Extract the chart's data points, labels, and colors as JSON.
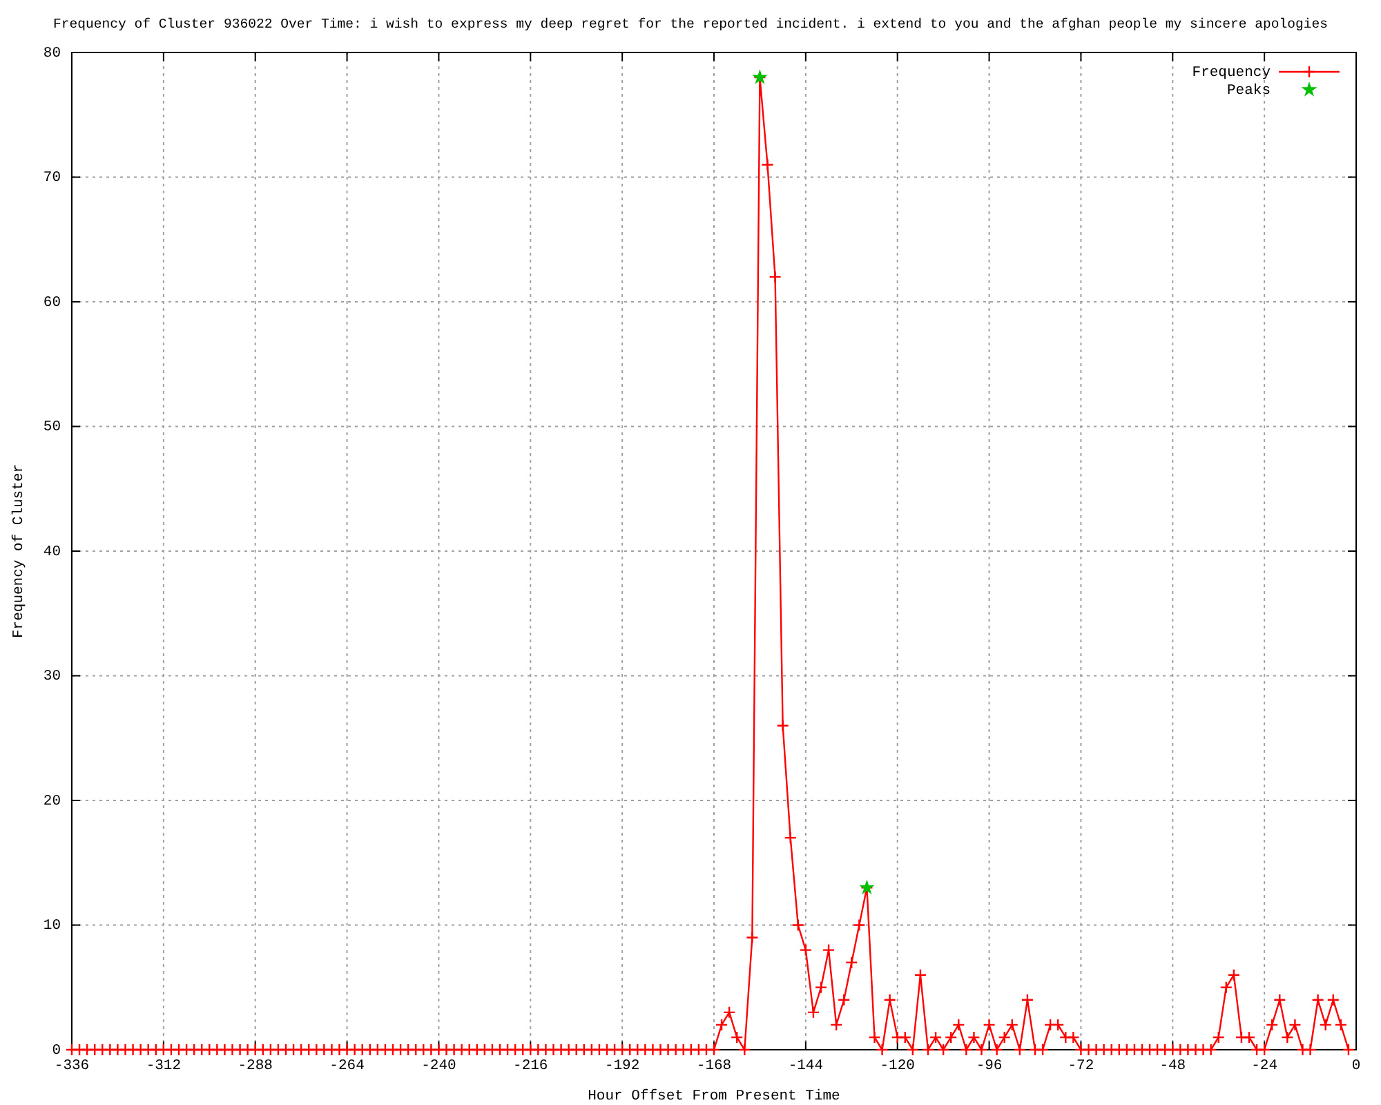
{
  "chart_data": {
    "type": "line",
    "title": "Frequency of Cluster 936022 Over Time: i wish to express my deep regret for the reported incident. i extend to you and the afghan people my sincere apologies",
    "xlabel": "Hour Offset From Present Time",
    "ylabel": "Frequency of Cluster",
    "x": [
      -336,
      -334,
      -332,
      -330,
      -328,
      -326,
      -324,
      -322,
      -320,
      -318,
      -316,
      -314,
      -312,
      -310,
      -308,
      -306,
      -304,
      -302,
      -300,
      -298,
      -296,
      -294,
      -292,
      -290,
      -288,
      -286,
      -284,
      -282,
      -280,
      -278,
      -276,
      -274,
      -272,
      -270,
      -268,
      -266,
      -264,
      -262,
      -260,
      -258,
      -256,
      -254,
      -252,
      -250,
      -248,
      -246,
      -244,
      -242,
      -240,
      -238,
      -236,
      -234,
      -232,
      -230,
      -228,
      -226,
      -224,
      -222,
      -220,
      -218,
      -216,
      -214,
      -212,
      -210,
      -208,
      -206,
      -204,
      -202,
      -200,
      -198,
      -196,
      -194,
      -192,
      -190,
      -188,
      -186,
      -184,
      -182,
      -180,
      -178,
      -176,
      -174,
      -172,
      -170,
      -168,
      -166,
      -164,
      -162,
      -160,
      -158,
      -156,
      -154,
      -152,
      -150,
      -148,
      -146,
      -144,
      -142,
      -140,
      -138,
      -136,
      -134,
      -132,
      -130,
      -128,
      -126,
      -124,
      -122,
      -120,
      -118,
      -116,
      -114,
      -112,
      -110,
      -108,
      -106,
      -104,
      -102,
      -100,
      -98,
      -96,
      -94,
      -92,
      -90,
      -88,
      -86,
      -84,
      -82,
      -80,
      -78,
      -76,
      -74,
      -72,
      -70,
      -68,
      -66,
      -64,
      -62,
      -60,
      -58,
      -56,
      -54,
      -52,
      -50,
      -48,
      -46,
      -44,
      -42,
      -40,
      -38,
      -36,
      -34,
      -32,
      -30,
      -28,
      -26,
      -24,
      -22,
      -20,
      -18,
      -16,
      -14,
      -12,
      -10,
      -8,
      -6,
      -4,
      -2
    ],
    "series": [
      {
        "name": "Frequency",
        "color": "#ff0000",
        "marker": "cross",
        "values": [
          0,
          0,
          0,
          0,
          0,
          0,
          0,
          0,
          0,
          0,
          0,
          0,
          0,
          0,
          0,
          0,
          0,
          0,
          0,
          0,
          0,
          0,
          0,
          0,
          0,
          0,
          0,
          0,
          0,
          0,
          0,
          0,
          0,
          0,
          0,
          0,
          0,
          0,
          0,
          0,
          0,
          0,
          0,
          0,
          0,
          0,
          0,
          0,
          0,
          0,
          0,
          0,
          0,
          0,
          0,
          0,
          0,
          0,
          0,
          0,
          0,
          0,
          0,
          0,
          0,
          0,
          0,
          0,
          0,
          0,
          0,
          0,
          0,
          0,
          0,
          0,
          0,
          0,
          0,
          0,
          0,
          0,
          0,
          0,
          0,
          2,
          3,
          1,
          0,
          9,
          78,
          71,
          62,
          26,
          17,
          10,
          8,
          3,
          5,
          8,
          2,
          4,
          7,
          10,
          13,
          1,
          0,
          4,
          1,
          1,
          0,
          6,
          0,
          1,
          0,
          1,
          2,
          0,
          1,
          0,
          2,
          0,
          1,
          2,
          0,
          4,
          0,
          0,
          2,
          2,
          1,
          1,
          0,
          0,
          0,
          0,
          0,
          0,
          0,
          0,
          0,
          0,
          0,
          0,
          0,
          0,
          0,
          0,
          0,
          0,
          1,
          5,
          6,
          1,
          1,
          0,
          0,
          2,
          4,
          1,
          2,
          0,
          0,
          4,
          2,
          4,
          2,
          0
        ]
      },
      {
        "name": "Peaks",
        "type": "scatter",
        "color": "#00c000",
        "marker": "star",
        "x": [
          -156,
          -128
        ],
        "values": [
          78,
          13
        ]
      }
    ],
    "xlim": [
      -336,
      0
    ],
    "xticks": [
      -336,
      -312,
      -288,
      -264,
      -240,
      -216,
      -192,
      -168,
      -144,
      -120,
      -96,
      -72,
      -48,
      -24,
      0
    ],
    "ylim": [
      0,
      80
    ],
    "yticks": [
      0,
      10,
      20,
      30,
      40,
      50,
      60,
      70,
      80
    ],
    "grid": true,
    "legend": "top right"
  }
}
